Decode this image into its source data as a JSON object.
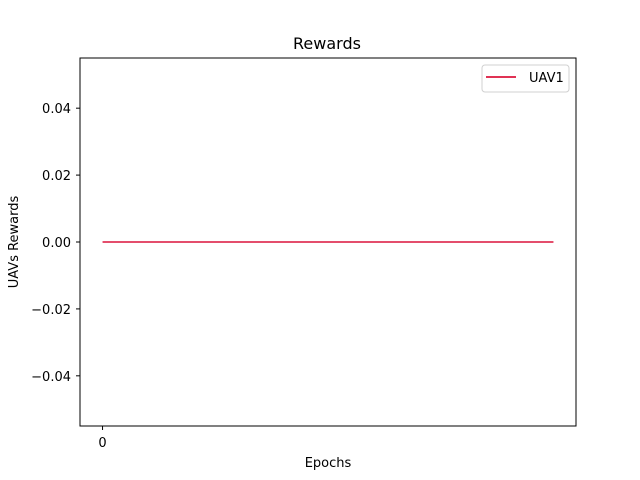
{
  "chart_data": {
    "type": "line",
    "title": "Rewards",
    "xlabel": "Epochs",
    "ylabel": "UAVs Rewards",
    "x_ticks": [
      0
    ],
    "x_tick_labels": [
      "0"
    ],
    "y_ticks": [
      -0.04,
      -0.02,
      0.0,
      0.02,
      0.04
    ],
    "y_tick_labels": [
      "−0.04",
      "−0.02",
      "0.00",
      "0.02",
      "0.04"
    ],
    "xlim": [
      -0.05,
      1.05
    ],
    "ylim": [
      -0.055,
      0.055
    ],
    "grid": false,
    "legend_position": "top-right",
    "series": [
      {
        "name": "UAV1",
        "color": "#dc143c",
        "x": [
          0,
          1
        ],
        "y": [
          0.0,
          0.0
        ]
      }
    ]
  }
}
